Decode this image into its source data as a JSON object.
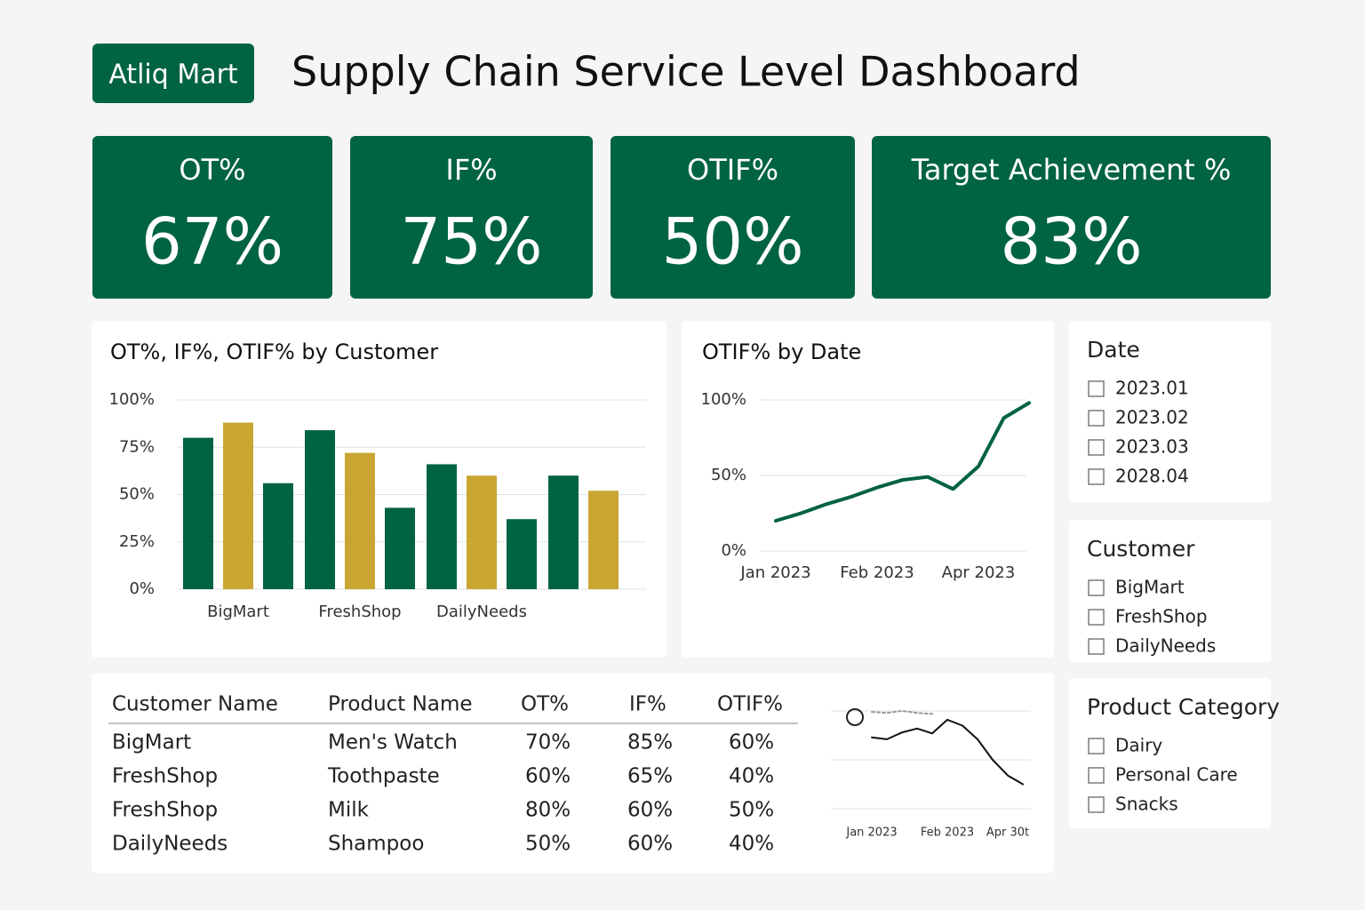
{
  "header": {
    "brand": "Atliq Mart",
    "title": "Supply Chain Service Level Dashboard"
  },
  "kpis": [
    {
      "label": "OT%",
      "value": "67%"
    },
    {
      "label": "IF%",
      "value": "75%"
    },
    {
      "label": "OTIF%",
      "value": "50%"
    },
    {
      "label": "Target Achievement %",
      "value": "83%"
    }
  ],
  "chart_data": [
    {
      "type": "bar",
      "title": "OT%, IF%, OTIF% by Customer",
      "categories": [
        "BigMart",
        "FreshShop",
        "DailyNeeds",
        null
      ],
      "series": [
        {
          "color": "#006341",
          "values": [
            80,
            84,
            66,
            60
          ]
        },
        {
          "color": "#c9a532",
          "values": [
            88,
            72,
            60,
            52
          ]
        },
        {
          "color": "#006341",
          "values": [
            56,
            43,
            37,
            null
          ]
        }
      ],
      "ylim": [
        0,
        100
      ],
      "yticks": [
        {
          "value": 0,
          "label": "0%"
        },
        {
          "value": 25,
          "label": "25%"
        },
        {
          "value": 50,
          "label": "50%"
        },
        {
          "value": 75,
          "label": "75%"
        },
        {
          "value": 100,
          "label": "100%"
        }
      ],
      "grid": true
    },
    {
      "type": "line",
      "title": "OTIF% by Date",
      "categories": [
        "Jan 2023",
        null,
        null,
        null,
        "Feb 2023",
        null,
        null,
        null,
        "Apr 2023",
        null,
        null
      ],
      "series": [
        {
          "color": "#006341",
          "values": [
            20,
            25,
            31,
            36,
            42,
            47,
            49,
            41,
            56,
            88,
            98
          ]
        }
      ],
      "ylim": [
        0,
        100
      ],
      "yticks": [
        {
          "value": 0,
          "label": "0%"
        },
        {
          "value": 50,
          "label": "50%"
        },
        {
          "value": 100,
          "label": "100%"
        }
      ],
      "grid": true
    },
    {
      "type": "line",
      "categories": [
        null,
        "Jan 2023",
        null,
        null,
        null,
        null,
        "Feb 2023",
        null,
        null,
        null,
        "Apr 30t",
        null
      ],
      "series": [
        {
          "color": "#999999",
          "dashed": true,
          "values": [
            null,
            99,
            98,
            100,
            98,
            97,
            null,
            null,
            null,
            null,
            null,
            null
          ]
        },
        {
          "color": "#111111",
          "values": [
            null,
            73,
            71,
            78,
            82,
            77,
            91,
            85,
            71,
            50,
            34,
            25
          ]
        }
      ],
      "ylim": [
        0,
        100
      ],
      "yticks": [
        0,
        50,
        100
      ],
      "grid": true
    }
  ],
  "table": {
    "columns": [
      "Customer Name",
      "Product Name",
      "OT%",
      "IF%",
      "OTIF%"
    ],
    "rows": [
      [
        "BigMart",
        "Men's Watch",
        "70%",
        "85%",
        "60%"
      ],
      [
        "FreshShop",
        "Toothpaste",
        "60%",
        "65%",
        "40%"
      ],
      [
        "FreshShop",
        "Milk",
        "80%",
        "60%",
        "50%"
      ],
      [
        "DailyNeeds",
        "Shampoo",
        "50%",
        "60%",
        "40%"
      ]
    ]
  },
  "slicers": [
    {
      "title": "Date",
      "items": [
        "2023.01",
        "2023.02",
        "2023.03",
        "2028.04"
      ]
    },
    {
      "title": "Customer",
      "items": [
        "BigMart",
        "FreshShop",
        "DailyNeeds"
      ]
    },
    {
      "title": "Product Category",
      "items": [
        "Dairy",
        "Personal Care",
        "Snacks"
      ]
    }
  ]
}
